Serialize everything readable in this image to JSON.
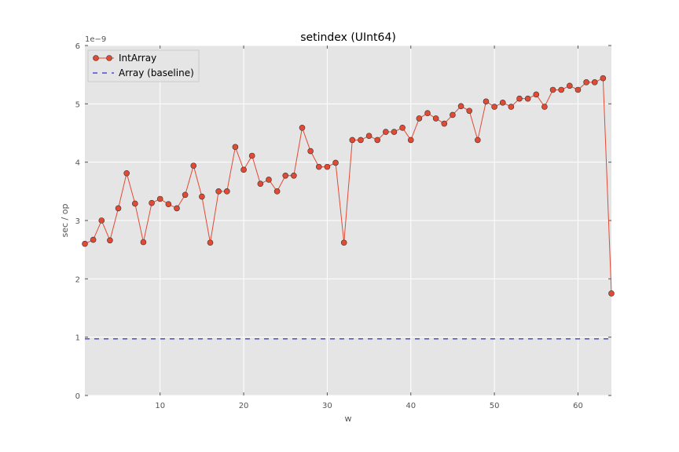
{
  "chart_data": {
    "type": "line",
    "title": "setindex (UInt64)",
    "xlabel": "w",
    "ylabel": "sec / op",
    "y_offset_label": "1e−9",
    "y_scale_note": "values in seconds (×1e-9)",
    "xlim": [
      1,
      64
    ],
    "ylim": [
      0,
      6
    ],
    "x_ticks": [
      10,
      20,
      30,
      40,
      50,
      60
    ],
    "y_ticks": [
      0,
      1,
      2,
      3,
      4,
      5,
      6
    ],
    "grid": true,
    "legend_position": "top-left",
    "x": [
      1,
      2,
      3,
      4,
      5,
      6,
      7,
      8,
      9,
      10,
      11,
      12,
      13,
      14,
      15,
      16,
      17,
      18,
      19,
      20,
      21,
      22,
      23,
      24,
      25,
      26,
      27,
      28,
      29,
      30,
      31,
      32,
      33,
      34,
      35,
      36,
      37,
      38,
      39,
      40,
      41,
      42,
      43,
      44,
      45,
      46,
      47,
      48,
      49,
      50,
      51,
      52,
      53,
      54,
      55,
      56,
      57,
      58,
      59,
      60,
      61,
      62,
      63,
      64
    ],
    "series": [
      {
        "name": "IntArray",
        "color": "#e24a33",
        "style": "line-with-markers",
        "values": [
          2.6,
          2.67,
          3.0,
          2.66,
          3.21,
          3.81,
          3.29,
          2.63,
          3.3,
          3.37,
          3.28,
          3.21,
          3.44,
          3.94,
          3.41,
          2.62,
          3.5,
          3.5,
          4.26,
          3.87,
          4.11,
          3.63,
          3.7,
          3.5,
          3.77,
          3.77,
          4.59,
          4.19,
          3.92,
          3.92,
          3.99,
          2.62,
          4.38,
          4.38,
          4.45,
          4.38,
          4.52,
          4.52,
          4.59,
          4.38,
          4.75,
          4.84,
          4.75,
          4.66,
          4.81,
          4.96,
          4.88,
          4.38,
          5.04,
          4.95,
          5.02,
          4.95,
          5.09,
          5.09,
          5.16,
          4.95,
          5.24,
          5.24,
          5.31,
          5.24,
          5.37,
          5.37,
          5.44,
          1.75
        ]
      },
      {
        "name": "Array (baseline)",
        "color": "#0000cc",
        "style": "dashed",
        "constant": 0.97
      }
    ]
  }
}
